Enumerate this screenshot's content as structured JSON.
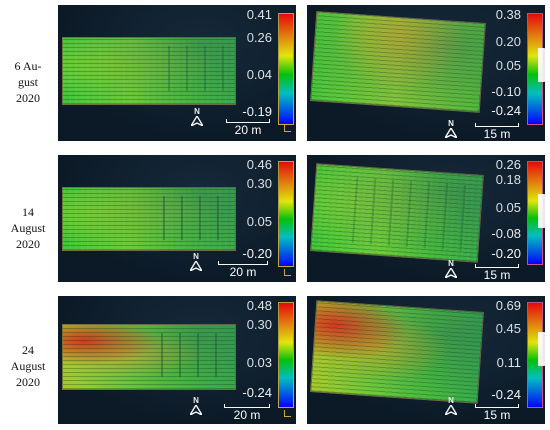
{
  "rows": [
    {
      "label": "6 Au-\ngust\n2020"
    },
    {
      "label": "14\nAugust\n2020"
    },
    {
      "label": "24\nAugust\n2020"
    }
  ],
  "panels": [
    {
      "row": 0,
      "col": 0,
      "colorbar_ticks": [
        "0.41",
        "0.26",
        "0.04",
        "-0.19"
      ],
      "scale_label": "20 m",
      "north": "N"
    },
    {
      "row": 0,
      "col": 1,
      "colorbar_ticks": [
        "0.38",
        "0.20",
        "0.05",
        "-0.10",
        "-0.24"
      ],
      "scale_label": "15 m",
      "north": "N"
    },
    {
      "row": 1,
      "col": 0,
      "colorbar_ticks": [
        "0.46",
        "0.30",
        "0.05",
        "-0.20"
      ],
      "scale_label": "20 m",
      "north": "N"
    },
    {
      "row": 1,
      "col": 1,
      "colorbar_ticks": [
        "0.26",
        "0.18",
        "0.05",
        "-0.08",
        "-0.20"
      ],
      "scale_label": "15 m",
      "north": "N"
    },
    {
      "row": 2,
      "col": 0,
      "colorbar_ticks": [
        "0.48",
        "0.30",
        "0.03",
        "-0.24"
      ],
      "scale_label": "20 m",
      "north": "N"
    },
    {
      "row": 2,
      "col": 1,
      "colorbar_ticks": [
        "0.69",
        "0.45",
        "0.11",
        "-0.24"
      ],
      "scale_label": "15 m",
      "north": "N"
    }
  ],
  "colors": {
    "background": "#0c1a27",
    "colorbar_top": "#ff0000",
    "colorbar_bottom": "#0000ff",
    "field_main": "#4cc83c"
  }
}
